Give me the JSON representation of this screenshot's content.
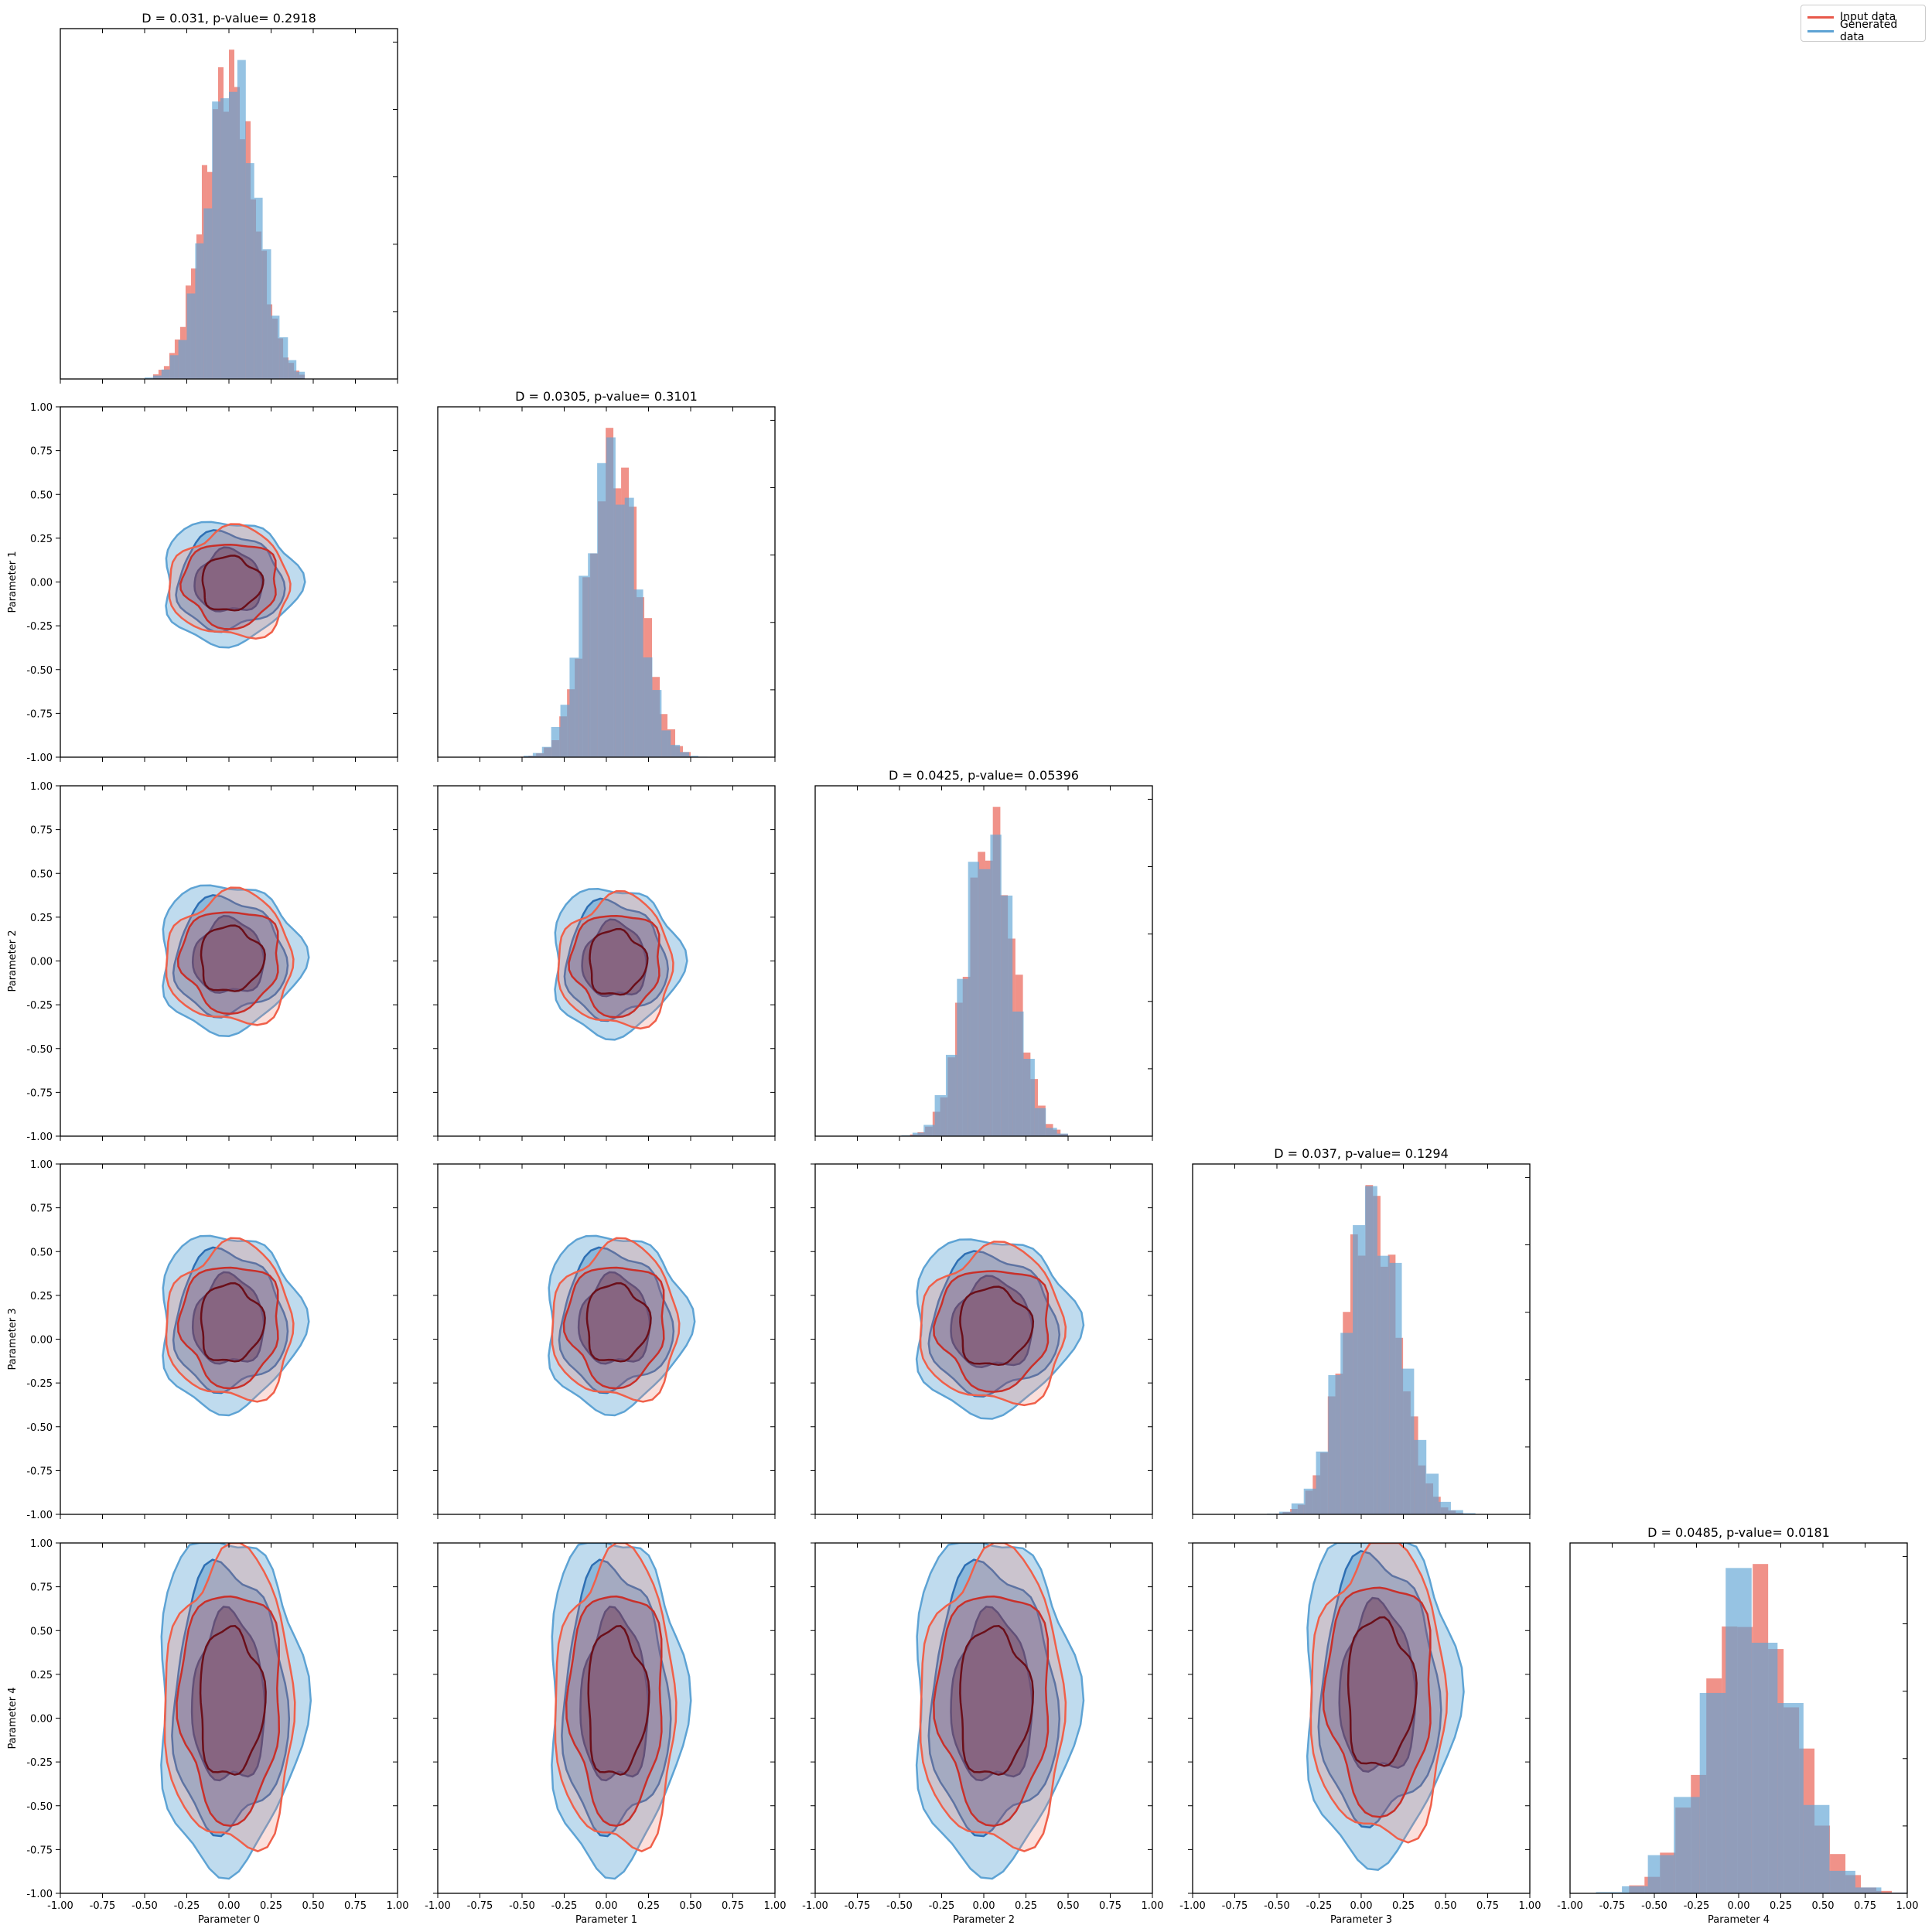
{
  "legend": {
    "input_label": "Input data",
    "generated_label": "Generated data",
    "input_color": "#e8584a",
    "generated_color": "#5ea3d4",
    "placement": "top-right"
  },
  "chart_data": {
    "type": "corner-plot",
    "parameters": [
      "Parameter 0",
      "Parameter 1",
      "Parameter 2",
      "Parameter 3",
      "Parameter 4"
    ],
    "axis_range": [
      -1.0,
      1.0
    ],
    "tick_labels": [
      "-1.00",
      "-0.75",
      "-0.50",
      "-0.25",
      "0.00",
      "0.25",
      "0.50",
      "0.75",
      "1.00"
    ],
    "ks_titles": [
      "D = 0.031, p-value= 0.2918",
      "D = 0.0305, p-value= 0.3101",
      "D = 0.0425, p-value= 0.05396",
      "D = 0.037, p-value= 0.1294",
      "D = 0.0485, p-value= 0.0181"
    ],
    "histograms": [
      {
        "param": "Parameter 0",
        "series": [
          {
            "name": "Input data",
            "mean": 0.0,
            "sd": 0.15,
            "bins": 28,
            "range": [
              -0.45,
              0.45
            ]
          },
          {
            "name": "Generated data",
            "mean": 0.02,
            "sd": 0.15,
            "bins": 22,
            "range": [
              -0.65,
              0.45
            ]
          }
        ]
      },
      {
        "param": "Parameter 1",
        "series": [
          {
            "name": "Input data",
            "mean": 0.05,
            "sd": 0.15,
            "bins": 24,
            "range": [
              -0.6,
              0.5
            ]
          },
          {
            "name": "Generated data",
            "mean": 0.03,
            "sd": 0.15,
            "bins": 22,
            "range": [
              -0.6,
              0.6
            ]
          }
        ]
      },
      {
        "param": "Parameter 2",
        "series": [
          {
            "name": "Input data",
            "mean": 0.04,
            "sd": 0.14,
            "bins": 28,
            "range": [
              -0.75,
              0.5
            ]
          },
          {
            "name": "Generated data",
            "mean": 0.03,
            "sd": 0.14,
            "bins": 22,
            "range": [
              -0.95,
              0.5
            ]
          }
        ]
      },
      {
        "param": "Parameter 3",
        "series": [
          {
            "name": "Input data",
            "mean": 0.06,
            "sd": 0.16,
            "bins": 28,
            "range": [
              -0.6,
              0.65
            ]
          },
          {
            "name": "Generated data",
            "mean": 0.07,
            "sd": 0.17,
            "bins": 22,
            "range": [
              -0.85,
              0.75
            ]
          }
        ]
      },
      {
        "param": "Parameter 4",
        "series": [
          {
            "name": "Input data",
            "mean": 0.08,
            "sd": 0.25,
            "bins": 18,
            "range": [
              -0.65,
              1.0
            ]
          },
          {
            "name": "Generated data",
            "mean": 0.06,
            "sd": 0.25,
            "bins": 13,
            "range": [
              -1.0,
              1.0
            ]
          }
        ]
      }
    ],
    "contours": {
      "levels": [
        "outer",
        "middle",
        "inner"
      ],
      "panels": [
        {
          "x": "Parameter 0",
          "y": "Parameter 1",
          "cx": 0.0,
          "cy": 0.0,
          "rx": 0.4,
          "ry": 0.35
        },
        {
          "x": "Parameter 0",
          "y": "Parameter 2",
          "cx": 0.0,
          "cy": 0.02,
          "rx": 0.42,
          "ry": 0.42
        },
        {
          "x": "Parameter 1",
          "y": "Parameter 2",
          "cx": 0.05,
          "cy": 0.0,
          "rx": 0.38,
          "ry": 0.42
        },
        {
          "x": "Parameter 0",
          "y": "Parameter 3",
          "cx": 0.0,
          "cy": 0.1,
          "rx": 0.42,
          "ry": 0.5
        },
        {
          "x": "Parameter 1",
          "y": "Parameter 3",
          "cx": 0.05,
          "cy": 0.1,
          "rx": 0.42,
          "ry": 0.5
        },
        {
          "x": "Parameter 2",
          "y": "Parameter 3",
          "cx": 0.05,
          "cy": 0.08,
          "rx": 0.48,
          "ry": 0.5
        },
        {
          "x": "Parameter 0",
          "y": "Parameter 4",
          "cx": 0.0,
          "cy": 0.1,
          "rx": 0.43,
          "ry": 0.95
        },
        {
          "x": "Parameter 1",
          "y": "Parameter 4",
          "cx": 0.05,
          "cy": 0.1,
          "rx": 0.4,
          "ry": 0.95
        },
        {
          "x": "Parameter 2",
          "y": "Parameter 4",
          "cx": 0.05,
          "cy": 0.1,
          "rx": 0.48,
          "ry": 0.95
        },
        {
          "x": "Parameter 3",
          "y": "Parameter 4",
          "cx": 0.1,
          "cy": 0.15,
          "rx": 0.45,
          "ry": 0.95
        }
      ]
    }
  }
}
